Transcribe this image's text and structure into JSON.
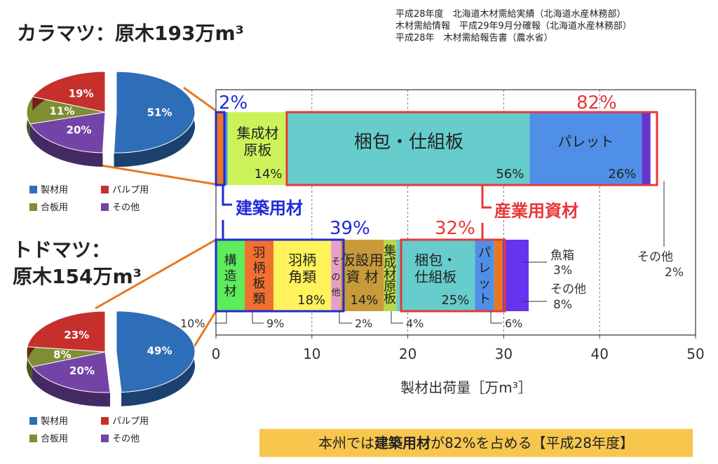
{
  "karamatsu": {
    "title": "カラマツ：原木193万m³",
    "pie": {
      "values": [
        51,
        20,
        11,
        19
      ],
      "labels": [
        "51%",
        "20%",
        "11%",
        "19%"
      ],
      "colors": [
        "#2e6db7",
        "#7344a6",
        "#7f8d33",
        "#c5302c"
      ]
    },
    "legend": [
      "製材用",
      "パルプ用",
      "合板用",
      "その他"
    ]
  },
  "todomatsu": {
    "title_line1": "トドマツ：",
    "title_line2": "原木154万m³",
    "pie": {
      "values": [
        49,
        20,
        8,
        23
      ],
      "labels": [
        "49%",
        "20%",
        "8%",
        "23%"
      ],
      "colors": [
        "#2e6db7",
        "#7344a6",
        "#7f8d33",
        "#c5302c"
      ]
    },
    "legend": [
      "製材用",
      "パルプ用",
      "合板用",
      "その他"
    ]
  },
  "sources": [
    "平成28年度　北海道木材需給実績（北海道水産林務部）",
    "木材需給情報　平成29年9月分確報（北海道水産林務部）",
    "平成28年　木材需給報告書（農水省）"
  ],
  "chart_data": {
    "type": "bar",
    "orientation": "horizontal-stacked",
    "xlabel": "製材出荷量［万m³］",
    "xlim": [
      0,
      50
    ],
    "xticks": [
      "0",
      "10",
      "20",
      "30",
      "40",
      "50"
    ],
    "series": [
      {
        "name": "カラマツ",
        "segments": [
          {
            "lines": [],
            "pct": "",
            "start": 0,
            "value": 0.9,
            "color": "#e87722"
          },
          {
            "lines": [],
            "pct": "",
            "start": 0.9,
            "value": 0.3,
            "color": "#4b8fe0"
          },
          {
            "lines": [
              "集成材",
              "原板"
            ],
            "pct": "14%",
            "start": 1.2,
            "value": 6.3,
            "color": "#ccf25a"
          },
          {
            "lines": [
              "梱包・仕組板"
            ],
            "pct": "56%",
            "start": 7.5,
            "value": 25.2,
            "color": "#66cccc"
          },
          {
            "lines": [
              "パレット"
            ],
            "pct": "26%",
            "start": 32.7,
            "value": 11.7,
            "color": "#4f8fe8"
          },
          {
            "lines": [],
            "pct": "",
            "start": 44.4,
            "value": 0.9,
            "color": "#6633cc"
          }
        ]
      },
      {
        "name": "トドマツ",
        "segments": [
          {
            "lines": [
              "構",
              "造",
              "材"
            ],
            "pct": "",
            "start": 0,
            "value": 3.0,
            "color": "#5cec5c"
          },
          {
            "lines": [
              "羽",
              "柄",
              "板",
              "類"
            ],
            "pct": "",
            "start": 3.0,
            "value": 3.0,
            "color": "#f07030"
          },
          {
            "lines": [
              "羽柄",
              "角類"
            ],
            "pct": "18%",
            "start": 6.0,
            "value": 6.0,
            "color": "#fff25a"
          },
          {
            "lines": [
              "そ",
              "の",
              "他"
            ],
            "pct": "",
            "start": 12.0,
            "value": 1.0,
            "color": "#e6a0c8"
          },
          {
            "lines": [
              "仮設用",
              "資 材"
            ],
            "pct": "14%",
            "start": 13.0,
            "value": 4.5,
            "color": "#c99a3a"
          },
          {
            "lines": [
              "集",
              "成",
              "材",
              "原",
              "板"
            ],
            "pct": "",
            "start": 17.5,
            "value": 1.3,
            "color": "#b8d84a"
          },
          {
            "lines": [
              "梱包・",
              "仕組板"
            ],
            "pct": "25%",
            "start": 18.8,
            "value": 8.2,
            "color": "#66cccc"
          },
          {
            "lines": [
              "パ",
              "レ",
              "ッ",
              "ト"
            ],
            "pct": "",
            "start": 27.0,
            "value": 2.0,
            "color": "#4f8fe8"
          },
          {
            "lines": [],
            "pct": "",
            "start": 29.0,
            "value": 0.9,
            "color": "#e87722"
          },
          {
            "lines": [],
            "pct": "",
            "start": 29.9,
            "value": 2.7,
            "color": "#6633ee"
          }
        ]
      }
    ],
    "annotations": {
      "karamatsu_kenchiku_pct": "2%",
      "karamatsu_sangyo_pct": "82%",
      "kenchiku_label": "建築用材",
      "sangyo_label": "産業用資材",
      "todomatsu_kenchiku_pct": "39%",
      "todomatsu_sangyo_pct": "32%",
      "todomatsu_bottom": [
        "10%",
        "9%",
        "2%",
        "4%",
        "6%"
      ],
      "uobako": [
        "魚箱",
        "3%"
      ],
      "sonota_todo": [
        "その他",
        "8%"
      ],
      "sonota_kara": [
        "その他",
        "2%"
      ]
    }
  },
  "banner": {
    "pre": "本州では",
    "bold": "建築用材",
    "post": "が82%を占める【平成28年度】"
  }
}
